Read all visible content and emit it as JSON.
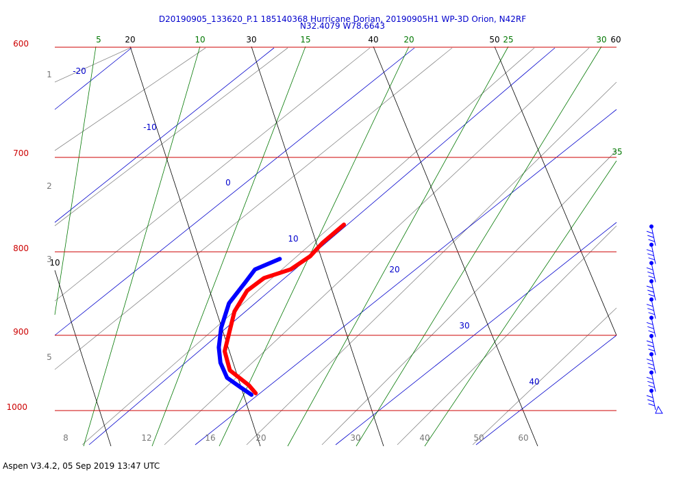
{
  "chart_data": {
    "type": "skew-t",
    "title": "D20190905_133620_P.1 185140368 Hurricane Dorian, 20190905H1 WP-3D Orion, N42RF",
    "subtitle": "N32.4079 W78.6643",
    "pressure_levels": [
      "600",
      "700",
      "800",
      "900",
      "1000"
    ],
    "temperature_labels": [
      {
        "value": "20"
      },
      {
        "value": "30"
      },
      {
        "value": "40"
      },
      {
        "value": "50"
      },
      {
        "value": "60"
      },
      {
        "value": "10"
      }
    ],
    "mixing_ratio_labels": [
      "5",
      "10",
      "15",
      "20",
      "25",
      "30",
      "35"
    ],
    "dry_adiabat_labels": [
      "-20",
      "-10",
      "0",
      "10",
      "20",
      "30",
      "40"
    ],
    "left_axis_labels": [
      "1",
      "2",
      "3",
      "5"
    ],
    "bottom_axis_labels": [
      "8",
      "12",
      "16",
      "20",
      "30",
      "40",
      "50",
      "60"
    ],
    "series": [
      {
        "color": "#ff0000",
        "points": [
          [
            770,
            24.5
          ],
          [
            790,
            23.3
          ],
          [
            805,
            22.7
          ],
          [
            820,
            21.5
          ],
          [
            830,
            19.6
          ],
          [
            845,
            18.6
          ],
          [
            870,
            18.2
          ],
          [
            895,
            18.4
          ],
          [
            920,
            18.6
          ],
          [
            945,
            19.6
          ],
          [
            965,
            21.6
          ],
          [
            976,
            22.4
          ]
        ]
      },
      {
        "color": "#0000ff",
        "points": [
          [
            808,
            20.3
          ],
          [
            820,
            18.6
          ],
          [
            835,
            18.2
          ],
          [
            860,
            17.5
          ],
          [
            890,
            17.6
          ],
          [
            915,
            18.0
          ],
          [
            935,
            18.6
          ],
          [
            955,
            19.6
          ],
          [
            968,
            21.0
          ],
          [
            978,
            22.1
          ]
        ]
      }
    ],
    "wind_barbs": [
      "barb",
      "barb",
      "barb",
      "barb",
      "barb",
      "barb",
      "barb",
      "barb",
      "barb",
      "barb"
    ],
    "colors": {
      "isobar": "#cc0000",
      "isotherm": "#000000",
      "mixing_ratio": "#007700",
      "dry_adiabat": "#0000cc",
      "moist_adiabat": "#888888",
      "temperature": "#ff0000",
      "dewpoint": "#0000ff"
    }
  },
  "footer": "Aspen V3.4.2, 05 Sep 2019  13:47 UTC"
}
